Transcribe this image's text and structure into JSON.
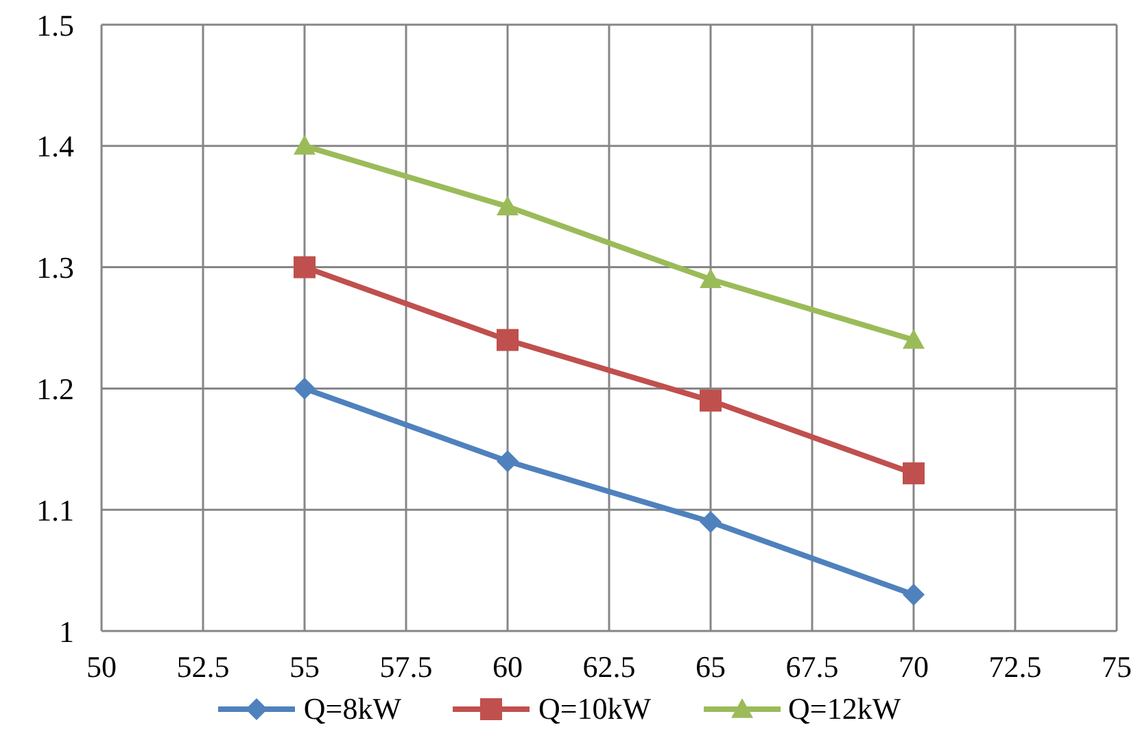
{
  "chart_data": {
    "type": "line",
    "x": [
      55,
      60,
      65,
      70
    ],
    "series": [
      {
        "name": "Q=8kW",
        "color": "#4f81bd",
        "marker": "diamond",
        "values": [
          1.2,
          1.14,
          1.09,
          1.03
        ]
      },
      {
        "name": "Q=10kW",
        "color": "#c0504d",
        "marker": "square",
        "values": [
          1.3,
          1.24,
          1.19,
          1.13
        ]
      },
      {
        "name": "Q=12kW",
        "color": "#9bbb59",
        "marker": "triangle",
        "values": [
          1.4,
          1.35,
          1.29,
          1.24
        ]
      }
    ],
    "xlim": [
      50,
      75
    ],
    "xticks": [
      50,
      52.5,
      55,
      57.5,
      60,
      62.5,
      65,
      67.5,
      70,
      72.5,
      75
    ],
    "ylim": [
      1,
      1.5
    ],
    "yticks": [
      1,
      1.1,
      1.2,
      1.3,
      1.4,
      1.5
    ],
    "grid": true,
    "legend": "bottom",
    "line_style": "solid"
  }
}
